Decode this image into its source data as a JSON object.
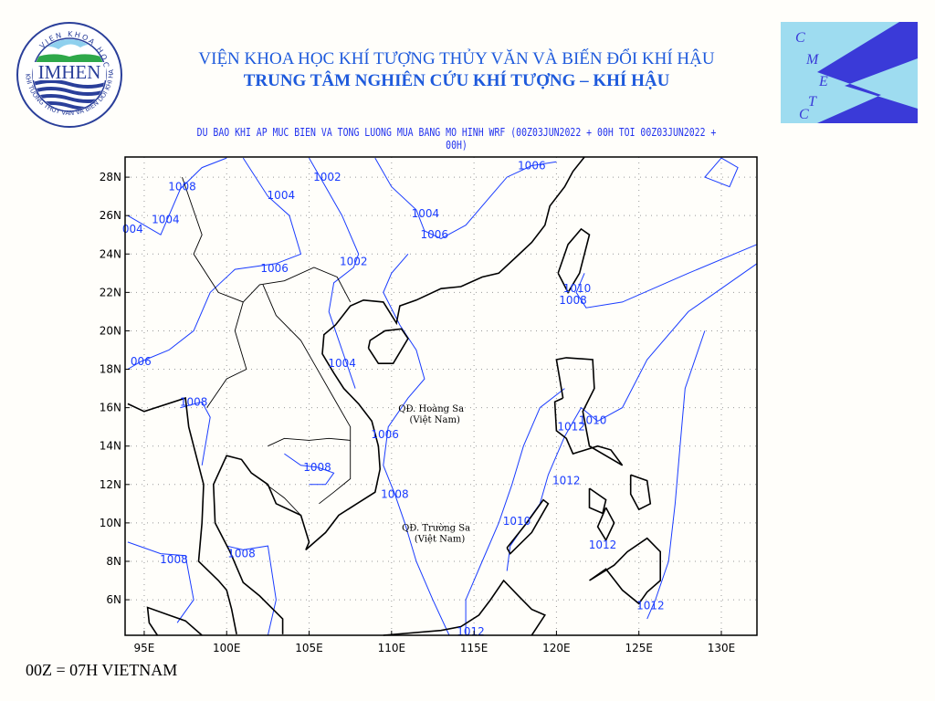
{
  "header": {
    "line1": "VIỆN KHOA HỌC KHÍ TƯỢNG THỦY VĂN VÀ BIẾN ĐỔI KHÍ HẬU",
    "line2": "TRUNG TÂM NGHIÊN CỨU KHÍ TƯỢNG – KHÍ HẬU"
  },
  "logo_left": {
    "text": "IMHEN",
    "ring_top": "VIEN KHOA HOC",
    "ring_side": "KHI TUONG THUY VAN VA BIEN DOI KHI HAU"
  },
  "logo_right": {
    "letters": [
      "C",
      "M",
      "E",
      "T",
      "C"
    ],
    "bg": "#9edcf0",
    "fg": "#3a3ad8"
  },
  "map": {
    "title": "DU BAO KHI AP MUC BIEN VA TONG LUONG MUA BANG MO HINH WRF (00Z03JUN2022 + 00H TOI 00Z03JUN2022 + 00H)",
    "lon_range": [
      93.84,
      132.16
    ],
    "lat_range": [
      4.15,
      29.05
    ],
    "lon_ticks": [
      {
        "v": 95,
        "l": "95E"
      },
      {
        "v": 100,
        "l": "100E"
      },
      {
        "v": 105,
        "l": "105E"
      },
      {
        "v": 110,
        "l": "110E"
      },
      {
        "v": 115,
        "l": "115E"
      },
      {
        "v": 120,
        "l": "120E"
      },
      {
        "v": 125,
        "l": "125E"
      },
      {
        "v": 130,
        "l": "130E"
      }
    ],
    "lat_ticks": [
      {
        "v": 6,
        "l": "6N"
      },
      {
        "v": 8,
        "l": "8N"
      },
      {
        "v": 10,
        "l": "10N"
      },
      {
        "v": 12,
        "l": "12N"
      },
      {
        "v": 14,
        "l": "14N"
      },
      {
        "v": 16,
        "l": "16N"
      },
      {
        "v": 18,
        "l": "18N"
      },
      {
        "v": 20,
        "l": "20N"
      },
      {
        "v": 22,
        "l": "22N"
      },
      {
        "v": 24,
        "l": "24N"
      },
      {
        "v": 26,
        "l": "26N"
      },
      {
        "v": 28,
        "l": "28N"
      }
    ],
    "grid": "dotted",
    "isobar_color": "#1a3cff",
    "isobar_labels": [
      {
        "t": "1008",
        "lon": 97.3,
        "lat": 27.5
      },
      {
        "t": "1004",
        "lon": 96.3,
        "lat": 25.8
      },
      {
        "t": "004",
        "lon": 94.3,
        "lat": 25.3
      },
      {
        "t": "1004",
        "lon": 103.3,
        "lat": 27.05
      },
      {
        "t": "1002",
        "lon": 106.1,
        "lat": 28.0
      },
      {
        "t": "1006",
        "lon": 118.5,
        "lat": 28.6
      },
      {
        "t": "1004",
        "lon": 112.05,
        "lat": 26.1
      },
      {
        "t": "1006",
        "lon": 112.6,
        "lat": 25.0
      },
      {
        "t": "1006",
        "lon": 102.9,
        "lat": 23.25
      },
      {
        "t": "1002",
        "lon": 107.7,
        "lat": 23.6
      },
      {
        "t": "1010",
        "lon": 121.25,
        "lat": 22.2
      },
      {
        "t": "1008",
        "lon": 121.0,
        "lat": 21.6
      },
      {
        "t": "006",
        "lon": 94.8,
        "lat": 18.4
      },
      {
        "t": "1004",
        "lon": 107.0,
        "lat": 18.3
      },
      {
        "t": "1008",
        "lon": 98.0,
        "lat": 16.3
      },
      {
        "t": "1012",
        "lon": 120.9,
        "lat": 15.0
      },
      {
        "t": "1010",
        "lon": 122.2,
        "lat": 15.35
      },
      {
        "t": "1006",
        "lon": 109.6,
        "lat": 14.6
      },
      {
        "t": "1008",
        "lon": 105.5,
        "lat": 12.9
      },
      {
        "t": "1012",
        "lon": 120.6,
        "lat": 12.2
      },
      {
        "t": "1008",
        "lon": 110.2,
        "lat": 11.5
      },
      {
        "t": "1010",
        "lon": 117.6,
        "lat": 10.1
      },
      {
        "t": "1008",
        "lon": 96.8,
        "lat": 8.1
      },
      {
        "t": "1008",
        "lon": 100.9,
        "lat": 8.4
      },
      {
        "t": "1012",
        "lon": 122.8,
        "lat": 8.85
      },
      {
        "t": "1012",
        "lon": 125.7,
        "lat": 5.7
      },
      {
        "t": "1012",
        "lon": 114.8,
        "lat": 4.35
      }
    ],
    "places": [
      {
        "name": "QĐ. Hoàng Sa",
        "sub": "(Việt Nam)",
        "lon": 112.4,
        "lat": 15.8
      },
      {
        "name": "QĐ. Trường Sa",
        "sub": "(Việt Nam)",
        "lon": 112.7,
        "lat": 9.6
      }
    ]
  },
  "footer": "00Z = 07H VIETNAM"
}
